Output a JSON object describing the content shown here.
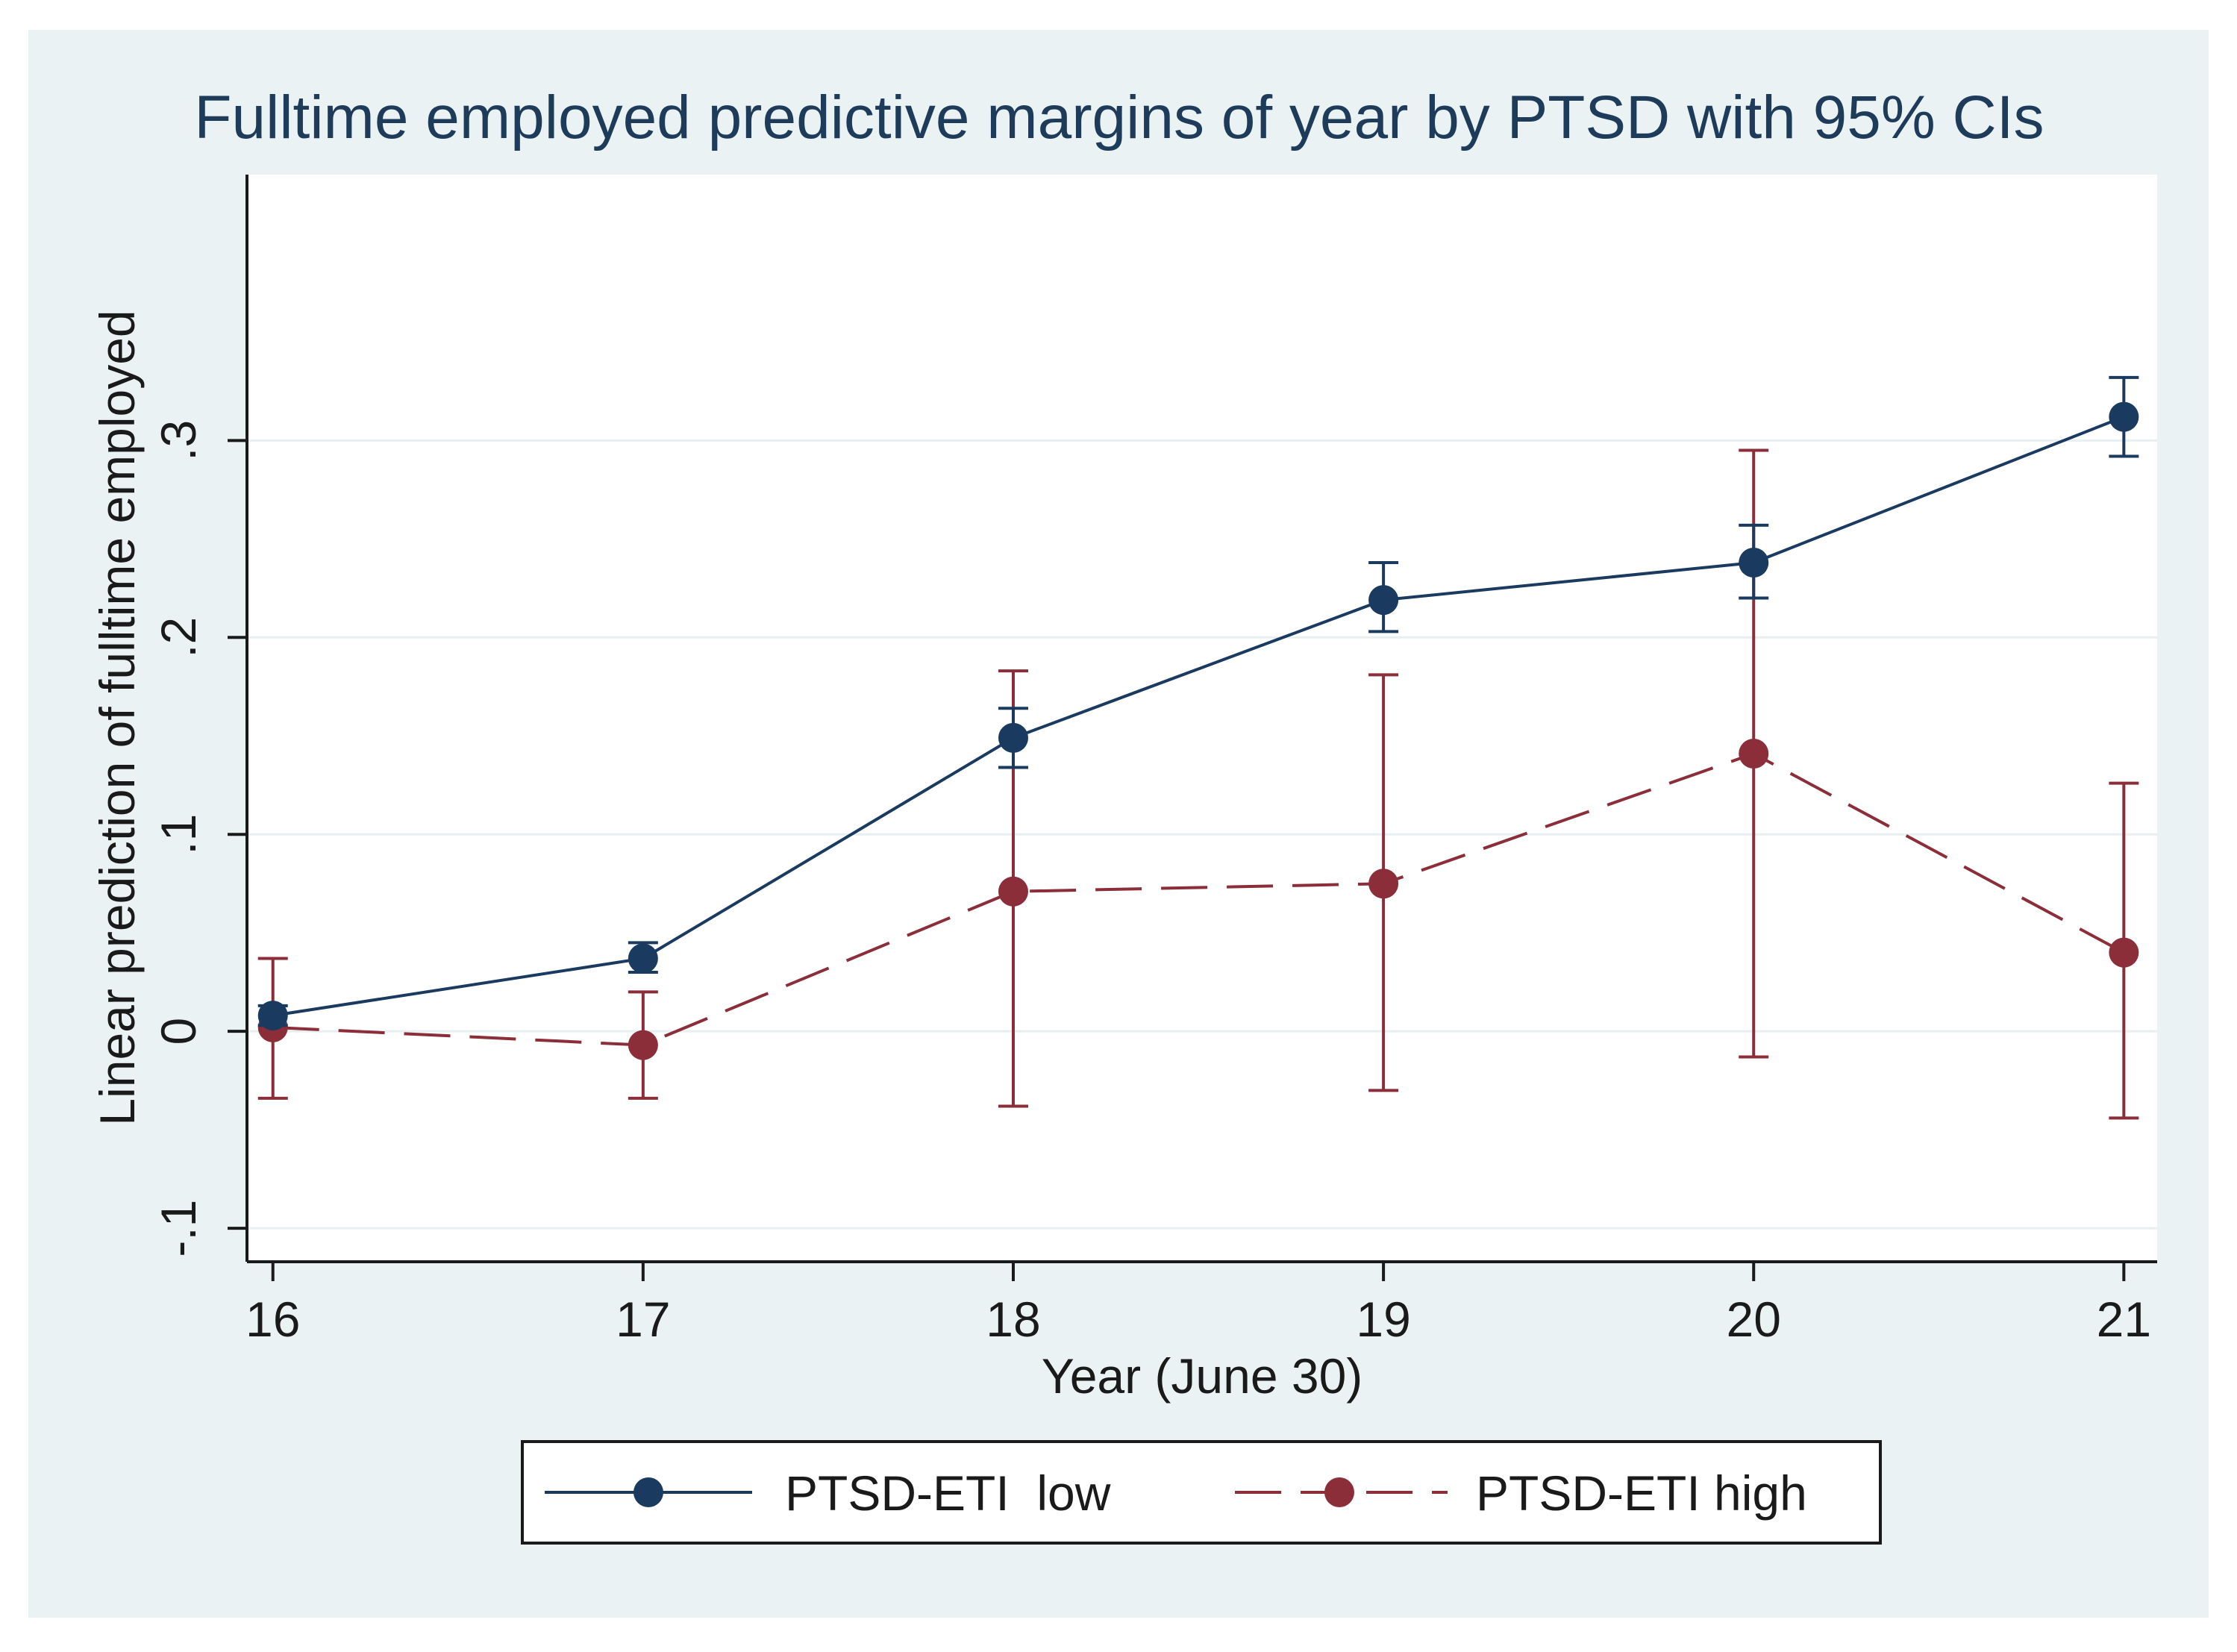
{
  "chart_data": {
    "type": "line",
    "title": "Fulltime employed predictive margins of year by PTSD with 95% CIs",
    "xlabel": "Year (June 30)",
    "ylabel": "Linear prediction of fulltime employed",
    "x": [
      16,
      17,
      18,
      19,
      20,
      21
    ],
    "x_tick_labels": [
      "16",
      "17",
      "18",
      "19",
      "20",
      "21"
    ],
    "y_ticks": [
      -0.1,
      0,
      0.1,
      0.2,
      0.3
    ],
    "y_tick_labels": [
      "-.1",
      "0",
      ".1",
      ".2",
      ".3"
    ],
    "xlim": [
      15.93,
      21.09
    ],
    "ylim": [
      -0.117,
      0.435
    ],
    "grid": true,
    "legend_position": "bottom",
    "series": [
      {
        "name": "PTSD-ETI  low",
        "color": "#1a3a5f",
        "line_style": "solid",
        "values": [
          0.008,
          0.037,
          0.149,
          0.219,
          0.238,
          0.312
        ],
        "ci_lower": [
          0.003,
          0.03,
          0.134,
          0.203,
          0.22,
          0.292
        ],
        "ci_upper": [
          0.013,
          0.045,
          0.164,
          0.238,
          0.257,
          0.332
        ]
      },
      {
        "name": "PTSD-ETI high",
        "color": "#8b2e3a",
        "line_style": "dashed",
        "values": [
          0.002,
          -0.007,
          0.071,
          0.075,
          0.141,
          0.04
        ],
        "ci_lower": [
          -0.034,
          -0.034,
          -0.038,
          -0.03,
          -0.013,
          -0.044
        ],
        "ci_upper": [
          0.037,
          0.02,
          0.183,
          0.181,
          0.295,
          0.126
        ]
      }
    ],
    "colors": {
      "outer_background": "#eaf2f3",
      "plot_background": "#ffffff",
      "gridline": "#e8eff0",
      "axis": "#1a1a1a",
      "title_text": "#1e3b5a",
      "text": "#1a1a1a"
    }
  }
}
